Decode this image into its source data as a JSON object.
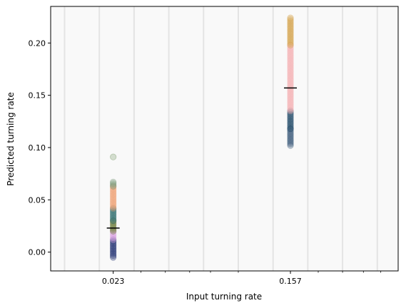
{
  "chart_data": {
    "type": "scatter",
    "title": "",
    "xlabel": "Input turning rate",
    "ylabel": "Predicted turning rate",
    "xlim": [
      0,
      10
    ],
    "ylim": [
      -0.018,
      0.235
    ],
    "x_tick_labels": [
      {
        "x": 1.8,
        "label": "0.023"
      },
      {
        "x": 6.9,
        "label": "0.157"
      }
    ],
    "x_minor_ticks": [
      2.6,
      3.3,
      4.0,
      4.6,
      5.4,
      7.7,
      8.4,
      9.0,
      9.5
    ],
    "y_ticks": [
      0.0,
      0.05,
      0.1,
      0.15,
      0.2
    ],
    "y_tick_labels": [
      "0.00",
      "0.05",
      "0.10",
      "0.15",
      "0.20"
    ],
    "background_bands": [
      0.4,
      1.4,
      2.4,
      3.4,
      4.4,
      5.4,
      6.4,
      7.4,
      8.4,
      9.4
    ],
    "groups": [
      {
        "x": 1.8,
        "true_value": 0.023,
        "mean_marker": 0.023,
        "clusters": [
          {
            "color": "#1a2a6c",
            "min": -0.005,
            "max": 0.012
          },
          {
            "color": "#d9a0e0",
            "min": 0.012,
            "max": 0.02
          },
          {
            "color": "#6e7d3a",
            "min": 0.02,
            "max": 0.03
          },
          {
            "color": "#2a6b6a",
            "min": 0.03,
            "max": 0.042
          },
          {
            "color": "#f0a070",
            "min": 0.042,
            "max": 0.063
          },
          {
            "color": "#7a9a7a",
            "min": 0.063,
            "max": 0.067
          }
        ],
        "outliers": [
          {
            "y": 0.091,
            "color": "#7a9a6a"
          }
        ]
      },
      {
        "x": 6.9,
        "true_value": 0.157,
        "mean_marker": 0.157,
        "clusters": [
          {
            "color": "#3a5a7a",
            "min": 0.102,
            "max": 0.118
          },
          {
            "color": "#1b4565",
            "min": 0.118,
            "max": 0.135
          },
          {
            "color": "#f5b1b3",
            "min": 0.135,
            "max": 0.198
          },
          {
            "color": "#d4a24a",
            "min": 0.198,
            "max": 0.224
          }
        ],
        "outliers": []
      }
    ],
    "grid": false,
    "legend": "none"
  }
}
